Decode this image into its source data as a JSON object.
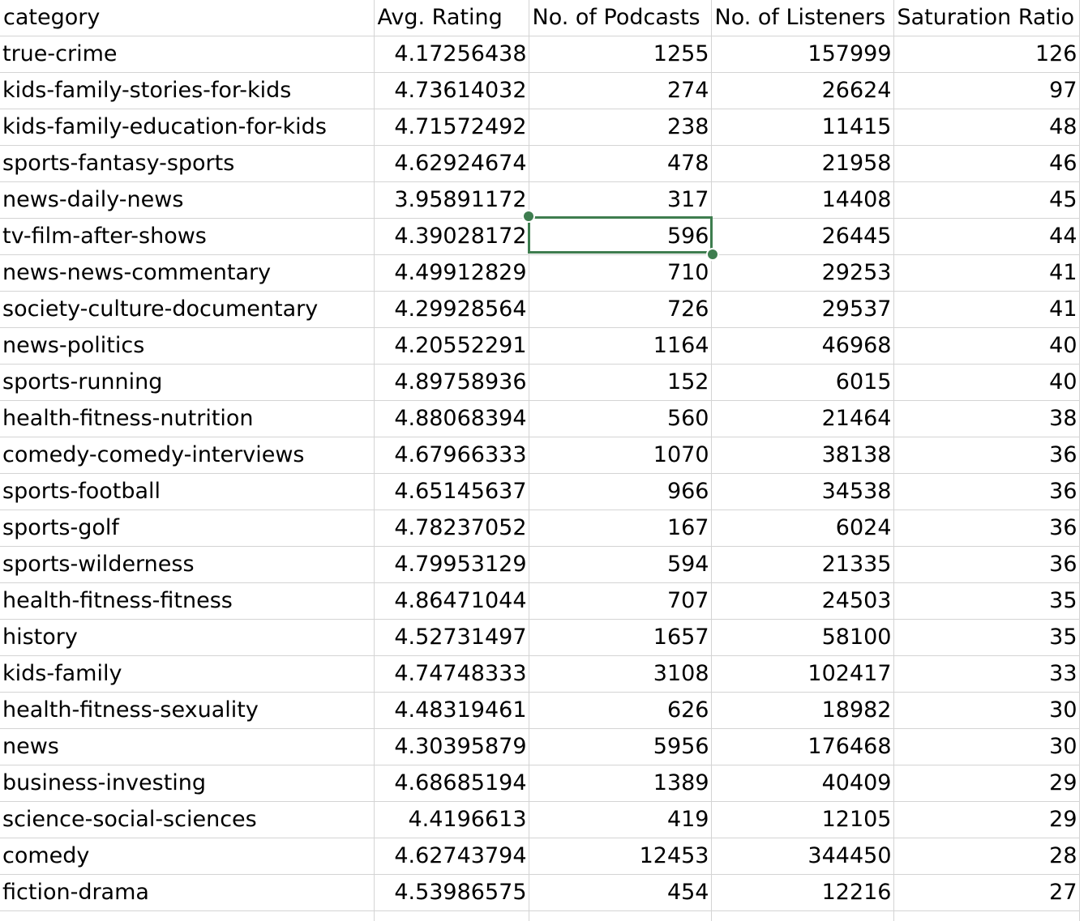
{
  "sheet": {
    "headers": [
      "category",
      "Avg. Rating",
      "No. of Podcasts",
      "No. of Listeners",
      "Saturation Ratio"
    ],
    "rows": [
      [
        "true-crime",
        "4.17256438",
        "1255",
        "157999",
        "126"
      ],
      [
        "kids-family-stories-for-kids",
        "4.73614032",
        "274",
        "26624",
        "97"
      ],
      [
        "kids-family-education-for-kids",
        "4.71572492",
        "238",
        "11415",
        "48"
      ],
      [
        "sports-fantasy-sports",
        "4.62924674",
        "478",
        "21958",
        "46"
      ],
      [
        "news-daily-news",
        "3.95891172",
        "317",
        "14408",
        "45"
      ],
      [
        "tv-film-after-shows",
        "4.39028172",
        "596",
        "26445",
        "44"
      ],
      [
        "news-news-commentary",
        "4.49912829",
        "710",
        "29253",
        "41"
      ],
      [
        "society-culture-documentary",
        "4.29928564",
        "726",
        "29537",
        "41"
      ],
      [
        "news-politics",
        "4.20552291",
        "1164",
        "46968",
        "40"
      ],
      [
        "sports-running",
        "4.89758936",
        "152",
        "6015",
        "40"
      ],
      [
        "health-fitness-nutrition",
        "4.88068394",
        "560",
        "21464",
        "38"
      ],
      [
        "comedy-comedy-interviews",
        "4.67966333",
        "1070",
        "38138",
        "36"
      ],
      [
        "sports-football",
        "4.65145637",
        "966",
        "34538",
        "36"
      ],
      [
        "sports-golf",
        "4.78237052",
        "167",
        "6024",
        "36"
      ],
      [
        "sports-wilderness",
        "4.79953129",
        "594",
        "21335",
        "36"
      ],
      [
        "health-fitness-fitness",
        "4.86471044",
        "707",
        "24503",
        "35"
      ],
      [
        "history",
        "4.52731497",
        "1657",
        "58100",
        "35"
      ],
      [
        "kids-family",
        "4.74748333",
        "3108",
        "102417",
        "33"
      ],
      [
        "health-fitness-sexuality",
        "4.48319461",
        "626",
        "18982",
        "30"
      ],
      [
        "news",
        "4.30395879",
        "5956",
        "176468",
        "30"
      ],
      [
        "business-investing",
        "4.68685194",
        "1389",
        "40409",
        "29"
      ],
      [
        "science-social-sciences",
        "4.4196613",
        "419",
        "12105",
        "29"
      ],
      [
        "comedy",
        "4.62743794",
        "12453",
        "344450",
        "28"
      ],
      [
        "fiction-drama",
        "4.53986575",
        "454",
        "12216",
        "27"
      ]
    ],
    "selected_cell": {
      "row": 5,
      "col": 2
    },
    "accent_color": "#3e7d4f",
    "gridline_color": "#d4d4d4"
  }
}
